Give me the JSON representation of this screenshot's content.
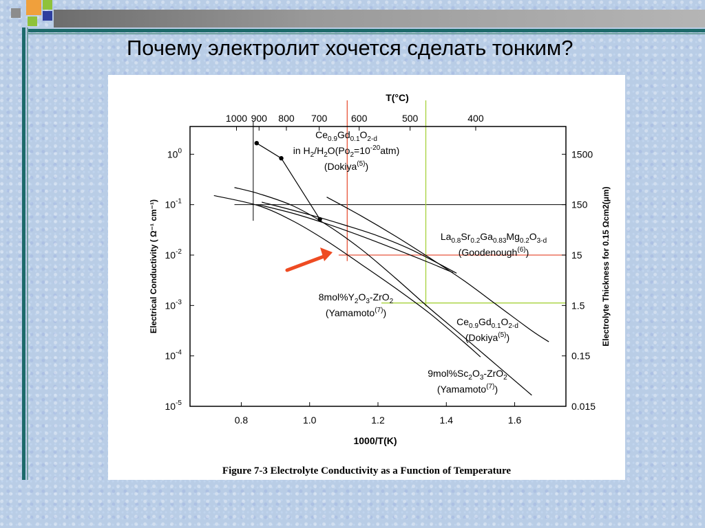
{
  "slide_title": "Почему электролит хочется сделать тонким?",
  "figure_caption": "Figure 7-3 Electrolyte Conductivity as a Function of Temperature",
  "colors": {
    "deco_orange": "#f0a03c",
    "deco_green": "#8fc23a",
    "deco_blue": "#2e3f9e",
    "deco_gray": "#8c8c8c",
    "red_guide": "#e8553a",
    "green_guide": "#a6d13a",
    "arrow": "#ee4b22"
  },
  "chart_data": {
    "type": "line",
    "xlabel": "1000/T(K)",
    "x2label": "T(°C)",
    "ylabel": "Electrical Conductivity ( Ω⁻¹ cm⁻¹)",
    "y2label": "Electrolyte Thickness for 0.15  Ωcm2(μm)",
    "xlim": [
      0.65,
      1.75
    ],
    "ylim_log10": [
      -5,
      0.55
    ],
    "x_ticks": [
      0.8,
      1.0,
      1.2,
      1.4,
      1.6
    ],
    "x_tick_labels": [
      "0.8",
      "1.0",
      "1.2",
      "1.4",
      "1.6"
    ],
    "y_ticks_log10": [
      0,
      -1,
      -2,
      -3,
      -4,
      -5
    ],
    "y_tick_labels": [
      {
        "base": "10",
        "exp": "0"
      },
      {
        "base": "10",
        "exp": "-1"
      },
      {
        "base": "10",
        "exp": "-2"
      },
      {
        "base": "10",
        "exp": "-3"
      },
      {
        "base": "10",
        "exp": "-4"
      },
      {
        "base": "10",
        "exp": "-5"
      }
    ],
    "x2_ticks": [
      {
        "label": "1000",
        "x": 0.786
      },
      {
        "label": "900",
        "x": 0.852
      },
      {
        "label": "800",
        "x": 0.932
      },
      {
        "label": "700",
        "x": 1.028
      },
      {
        "label": "600",
        "x": 1.145
      },
      {
        "label": "500",
        "x": 1.294
      },
      {
        "label": "400",
        "x": 1.486
      }
    ],
    "y2_ticks": [
      {
        "label": "1500",
        "log10": -0.0
      },
      {
        "label": "150",
        "log10": -1.0
      },
      {
        "label": "15",
        "log10": -2.0
      },
      {
        "label": "1.5",
        "log10": -3.0
      },
      {
        "label": "0.15",
        "log10": -4.0
      },
      {
        "label": "0.015",
        "log10": -5.0
      }
    ],
    "series": [
      {
        "points": [
          [
            0.72,
            -0.82
          ],
          [
            0.85,
            -1.02
          ],
          [
            0.95,
            -1.32
          ],
          [
            1.05,
            -1.72
          ],
          [
            1.15,
            -2.18
          ],
          [
            1.25,
            -2.65
          ],
          [
            1.35,
            -3.15
          ],
          [
            1.45,
            -3.72
          ],
          [
            1.5,
            -4.02
          ]
        ],
        "marker": false
      },
      {
        "points": [
          [
            0.78,
            -0.66
          ],
          [
            0.85,
            -0.78
          ],
          [
            0.95,
            -1.02
          ],
          [
            1.05,
            -1.4
          ],
          [
            1.15,
            -1.88
          ],
          [
            1.25,
            -2.45
          ],
          [
            1.35,
            -3.05
          ],
          [
            1.45,
            -3.62
          ],
          [
            1.55,
            -4.2
          ],
          [
            1.65,
            -4.78
          ]
        ],
        "marker": false
      },
      {
        "points": [
          [
            0.85,
            -1.0
          ],
          [
            0.95,
            -1.17
          ],
          [
            1.05,
            -1.38
          ],
          [
            1.15,
            -1.62
          ],
          [
            1.25,
            -1.88
          ],
          [
            1.35,
            -2.15
          ],
          [
            1.42,
            -2.35
          ]
        ],
        "marker": false
      },
      {
        "points": [
          [
            0.86,
            -0.95
          ],
          [
            1.0,
            -1.2
          ],
          [
            1.1,
            -1.4
          ],
          [
            1.2,
            -1.62
          ],
          [
            1.3,
            -1.9
          ],
          [
            1.43,
            -2.36
          ]
        ],
        "marker": false
      },
      {
        "points": [
          [
            1.05,
            -0.85
          ],
          [
            1.15,
            -1.22
          ],
          [
            1.25,
            -1.62
          ],
          [
            1.35,
            -2.05
          ],
          [
            1.45,
            -2.5
          ],
          [
            1.55,
            -3.0
          ],
          [
            1.65,
            -3.5
          ],
          [
            1.7,
            -3.72
          ]
        ],
        "marker": false
      },
      {
        "points": [
          [
            0.845,
            0.22
          ],
          [
            0.917,
            -0.08
          ],
          [
            1.03,
            -1.29
          ]
        ],
        "marker": true
      }
    ],
    "annotations": [
      {
        "id": "ce_h2",
        "lines": [
          [
            {
              "t": "Ce"
            },
            {
              "t": "0.9",
              "s": "sub"
            },
            {
              "t": "Gd"
            },
            {
              "t": "0.1",
              "s": "sub"
            },
            {
              "t": "O"
            },
            {
              "t": "2-d",
              "s": "sub"
            }
          ],
          [
            {
              "t": "in H"
            },
            {
              "t": "2",
              "s": "sub"
            },
            {
              "t": "/H"
            },
            {
              "t": "2",
              "s": "sub"
            },
            {
              "t": "O(Po"
            },
            {
              "t": "2",
              "s": "sub"
            },
            {
              "t": "=10"
            },
            {
              "t": "-20",
              "s": "sup"
            },
            {
              "t": "atm)"
            }
          ],
          [
            {
              "t": "(Dokiya"
            },
            {
              "t": "(5)",
              "s": "sup"
            },
            {
              "t": ")"
            }
          ]
        ]
      },
      {
        "id": "lsgm",
        "lines": [
          [
            {
              "t": "La"
            },
            {
              "t": "0.8",
              "s": "sub"
            },
            {
              "t": "Sr"
            },
            {
              "t": "0.2",
              "s": "sub"
            },
            {
              "t": "Ga"
            },
            {
              "t": "0.83",
              "s": "sub"
            },
            {
              "t": "Mg"
            },
            {
              "t": "0.2",
              "s": "sub"
            },
            {
              "t": "O"
            },
            {
              "t": "3-d",
              "s": "sub"
            }
          ],
          [
            {
              "t": "(Goodenough"
            },
            {
              "t": "(6)",
              "s": "sup"
            },
            {
              "t": ")"
            }
          ]
        ]
      },
      {
        "id": "ysz",
        "lines": [
          [
            {
              "t": "8mol%Y"
            },
            {
              "t": "2",
              "s": "sub"
            },
            {
              "t": "O"
            },
            {
              "t": "3",
              "s": "sub"
            },
            {
              "t": "-ZrO"
            },
            {
              "t": "2",
              "s": "sub"
            }
          ],
          [
            {
              "t": "(Yamamoto"
            },
            {
              "t": "(7)",
              "s": "sup"
            },
            {
              "t": ")"
            }
          ]
        ]
      },
      {
        "id": "cgo",
        "lines": [
          [
            {
              "t": "Ce"
            },
            {
              "t": "0.9",
              "s": "sub"
            },
            {
              "t": "Gd"
            },
            {
              "t": "0.1",
              "s": "sub"
            },
            {
              "t": "O"
            },
            {
              "t": "2-d",
              "s": "sub"
            }
          ],
          [
            {
              "t": "(Dokiya"
            },
            {
              "t": "(5)",
              "s": "sup"
            },
            {
              "t": ")"
            }
          ]
        ]
      },
      {
        "id": "scsz",
        "lines": [
          [
            {
              "t": "9mol%Sc"
            },
            {
              "t": "2",
              "s": "sub"
            },
            {
              "t": "O"
            },
            {
              "t": "3",
              "s": "sub"
            },
            {
              "t": "-ZrO"
            },
            {
              "t": "2",
              "s": "sub"
            }
          ],
          [
            {
              "t": "(Yamamoto"
            },
            {
              "t": "(7)",
              "s": "sup"
            },
            {
              "t": ")"
            }
          ]
        ]
      }
    ]
  }
}
